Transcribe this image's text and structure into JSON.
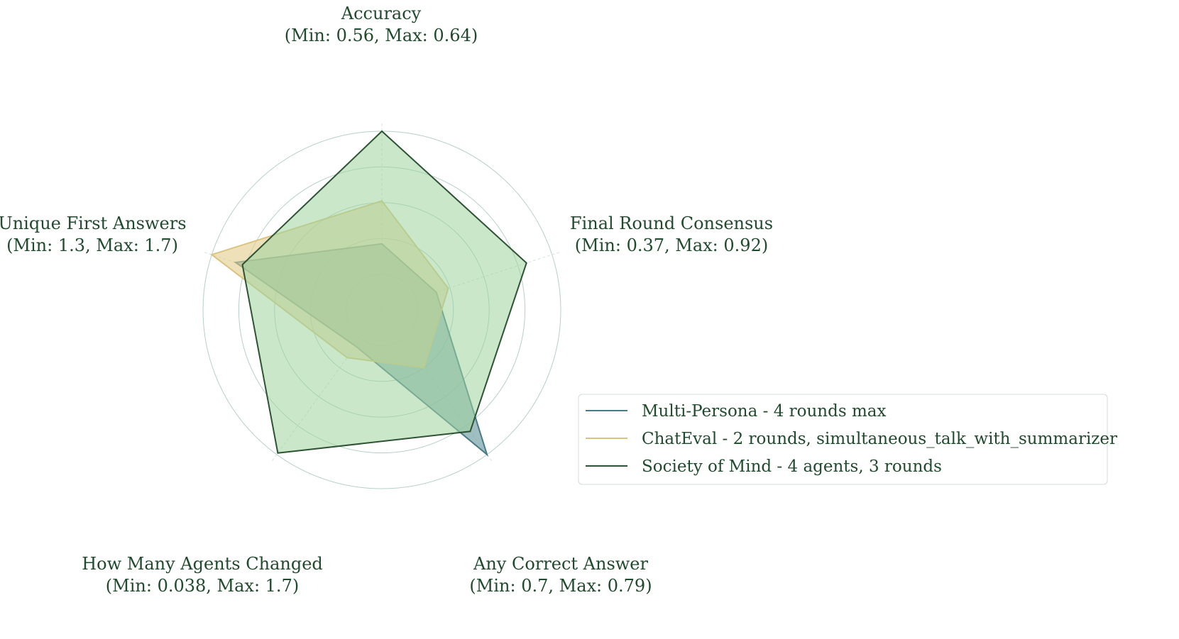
{
  "chart_data": {
    "type": "radar",
    "axes": [
      {
        "name": "Accuracy",
        "range_label": "(Min: 0.56, Max: 0.64)"
      },
      {
        "name": "Final Round Consensus",
        "range_label": "(Min: 0.37, Max: 0.92)"
      },
      {
        "name": "Any Correct Answer",
        "range_label": "(Min: 0.7, Max: 0.79)"
      },
      {
        "name": "How Many Agents Changed",
        "range_label": "(Min: 0.038, Max: 1.7)"
      },
      {
        "name": "Unique First Answers",
        "range_label": "(Min: 1.3, Max: 1.7)"
      }
    ],
    "scale": [
      0,
      1
    ],
    "grid_rings": [
      0.2,
      0.4,
      0.6,
      0.8,
      1.0
    ],
    "series": [
      {
        "name": "Multi-Persona - 4 rounds max",
        "values": [
          0.37,
          0.32,
          1.0,
          0.25,
          0.86
        ],
        "line_color": "#4a7a85",
        "fill_color": "#7fa8ad",
        "fill_opacity": 0.75
      },
      {
        "name": "ChatEval - 2 rounds, simultaneous_talk_with_summarizer",
        "values": [
          0.61,
          0.39,
          0.4,
          0.33,
          1.0
        ],
        "line_color": "#d9c47e",
        "fill_color": "#e3cd8c",
        "fill_opacity": 0.6
      },
      {
        "name": "Society of Mind - 4 agents, 3 rounds",
        "values": [
          1.0,
          0.85,
          0.84,
          0.99,
          0.82
        ],
        "line_color": "#2e5234",
        "fill_color": "#9ed39f",
        "fill_opacity": 0.55
      }
    ],
    "grid": true,
    "legend_position": "right"
  }
}
